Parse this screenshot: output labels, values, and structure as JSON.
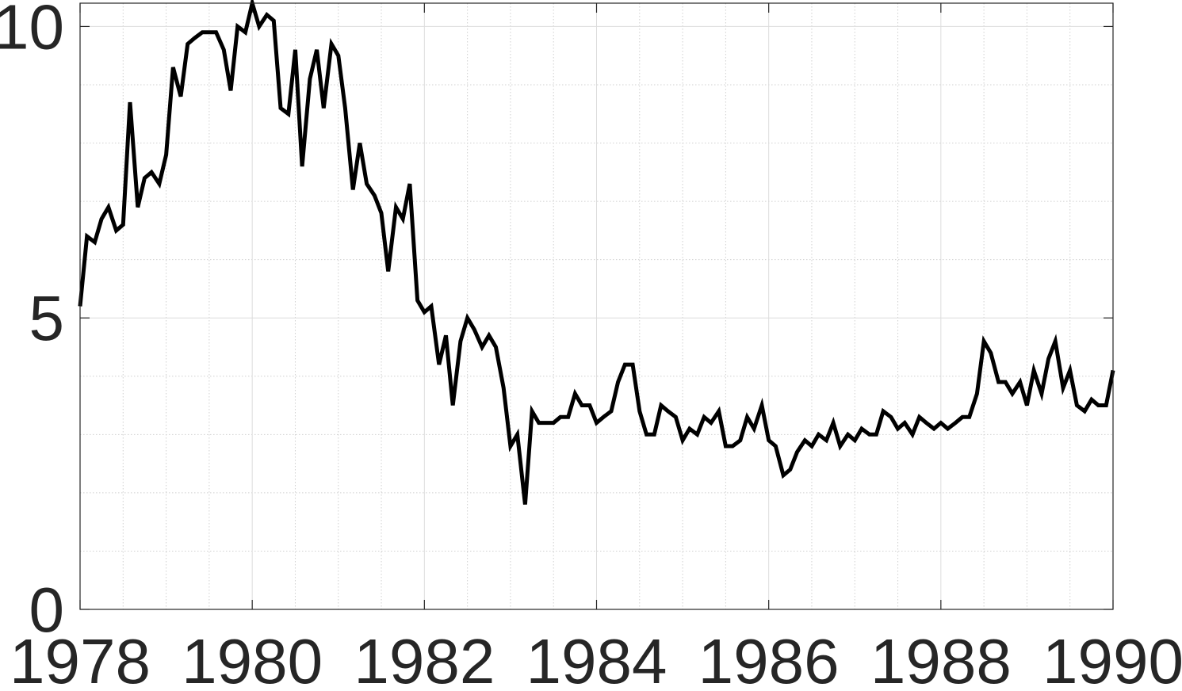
{
  "chart_data": {
    "type": "line",
    "title": "",
    "xlabel": "",
    "ylabel": "",
    "xlim": [
      1978,
      1990
    ],
    "ylim": [
      0,
      10.4
    ],
    "xticks": [
      1978,
      1980,
      1982,
      1984,
      1986,
      1988,
      1990
    ],
    "yticks": [
      0,
      5,
      10
    ],
    "xtick_labels": [
      "1978",
      "1980",
      "1982",
      "1984",
      "1986",
      "1988",
      "1990"
    ],
    "ytick_labels": [
      "0",
      "5",
      "10"
    ],
    "grid": true,
    "minor_grid": true,
    "legend": "none",
    "series": [
      {
        "color": "#000000",
        "x": [
          1978.0,
          1978.08,
          1978.17,
          1978.25,
          1978.33,
          1978.42,
          1978.5,
          1978.58,
          1978.67,
          1978.75,
          1978.83,
          1978.92,
          1979.0,
          1979.08,
          1979.17,
          1979.25,
          1979.33,
          1979.42,
          1979.5,
          1979.58,
          1979.67,
          1979.75,
          1979.83,
          1979.92,
          1980.0,
          1980.08,
          1980.17,
          1980.25,
          1980.33,
          1980.42,
          1980.5,
          1980.58,
          1980.67,
          1980.75,
          1980.83,
          1980.92,
          1981.0,
          1981.08,
          1981.17,
          1981.25,
          1981.33,
          1981.42,
          1981.5,
          1981.58,
          1981.67,
          1981.75,
          1981.83,
          1981.92,
          1982.0,
          1982.08,
          1982.17,
          1982.25,
          1982.33,
          1982.42,
          1982.5,
          1982.58,
          1982.67,
          1982.75,
          1982.83,
          1982.92,
          1983.0,
          1983.08,
          1983.17,
          1983.25,
          1983.33,
          1983.42,
          1983.5,
          1983.58,
          1983.67,
          1983.75,
          1983.83,
          1983.92,
          1984.0,
          1984.08,
          1984.17,
          1984.25,
          1984.33,
          1984.42,
          1984.5,
          1984.58,
          1984.67,
          1984.75,
          1984.83,
          1984.92,
          1985.0,
          1985.08,
          1985.17,
          1985.25,
          1985.33,
          1985.42,
          1985.5,
          1985.58,
          1985.67,
          1985.75,
          1985.83,
          1985.92,
          1986.0,
          1986.08,
          1986.17,
          1986.25,
          1986.33,
          1986.42,
          1986.5,
          1986.58,
          1986.67,
          1986.75,
          1986.83,
          1986.92,
          1987.0,
          1987.08,
          1987.17,
          1987.25,
          1987.33,
          1987.42,
          1987.5,
          1987.58,
          1987.67,
          1987.75,
          1987.83,
          1987.92,
          1988.0,
          1988.08,
          1988.17,
          1988.25,
          1988.33,
          1988.42,
          1988.5,
          1988.58,
          1988.67,
          1988.75,
          1988.83,
          1988.92,
          1989.0,
          1989.08,
          1989.17,
          1989.25,
          1989.33,
          1989.42,
          1989.5,
          1989.58,
          1989.67,
          1989.75,
          1989.83,
          1989.92,
          1990.0
        ],
        "y": [
          5.2,
          6.4,
          6.3,
          6.7,
          6.9,
          6.5,
          6.6,
          8.7,
          6.9,
          7.4,
          7.5,
          7.3,
          7.8,
          9.3,
          8.8,
          9.7,
          9.8,
          9.9,
          9.9,
          9.9,
          9.6,
          8.9,
          10.0,
          9.9,
          10.4,
          10.0,
          10.2,
          10.1,
          8.6,
          8.5,
          9.6,
          7.6,
          9.1,
          9.6,
          8.6,
          9.7,
          9.5,
          8.6,
          7.2,
          8.0,
          7.3,
          7.1,
          6.8,
          5.8,
          6.9,
          6.7,
          7.3,
          5.3,
          5.1,
          5.2,
          4.2,
          4.7,
          3.5,
          4.6,
          5.0,
          4.8,
          4.5,
          4.7,
          4.5,
          3.8,
          2.8,
          3.0,
          1.8,
          3.4,
          3.2,
          3.2,
          3.2,
          3.3,
          3.3,
          3.7,
          3.5,
          3.5,
          3.2,
          3.3,
          3.4,
          3.9,
          4.2,
          4.2,
          3.4,
          3.0,
          3.0,
          3.5,
          3.4,
          3.3,
          2.9,
          3.1,
          3.0,
          3.3,
          3.2,
          3.4,
          2.8,
          2.8,
          2.9,
          3.3,
          3.1,
          3.5,
          2.9,
          2.8,
          2.3,
          2.4,
          2.7,
          2.9,
          2.8,
          3.0,
          2.9,
          3.2,
          2.8,
          3.0,
          2.9,
          3.1,
          3.0,
          3.0,
          3.4,
          3.3,
          3.1,
          3.2,
          3.0,
          3.3,
          3.2,
          3.1,
          3.2,
          3.1,
          3.2,
          3.3,
          3.3,
          3.7,
          4.6,
          4.4,
          3.9,
          3.9,
          3.7,
          3.9,
          3.5,
          4.1,
          3.7,
          4.3,
          4.6,
          3.8,
          4.1,
          3.5,
          3.4,
          3.6,
          3.5,
          3.5,
          4.1
        ]
      }
    ]
  }
}
